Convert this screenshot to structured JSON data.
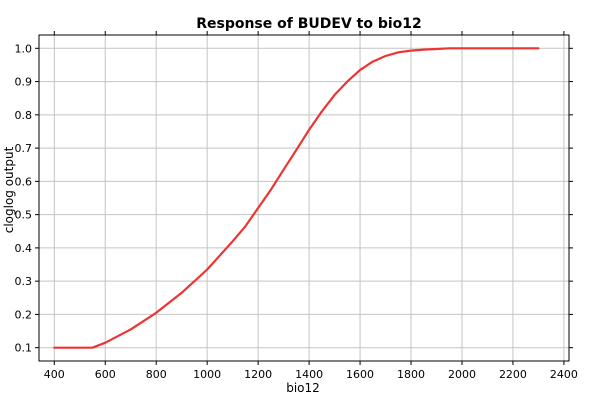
{
  "chart_data": {
    "type": "line",
    "title": "Response of BUDEV to bio12",
    "xlabel": "bio12",
    "ylabel": "cloglog output",
    "xlim": [
      340,
      2420
    ],
    "ylim": [
      0.06,
      1.04
    ],
    "x_ticks": [
      400,
      600,
      800,
      1000,
      1200,
      1400,
      1600,
      1800,
      2000,
      2200,
      2400
    ],
    "y_ticks": [
      0.1,
      0.2,
      0.3,
      0.4,
      0.5,
      0.6,
      0.7,
      0.8,
      0.9,
      1.0
    ],
    "x_tick_labels": [
      "400",
      "600",
      "800",
      "1000",
      "1200",
      "1400",
      "1600",
      "1800",
      "2000",
      "2200",
      "2400"
    ],
    "y_tick_labels": [
      "0.1",
      "0.2",
      "0.3",
      "0.4",
      "0.5",
      "0.6",
      "0.7",
      "0.8",
      "0.9",
      "1.0"
    ],
    "grid": true,
    "series": [
      {
        "color": "#ee3333",
        "x": [
          400,
          550,
          600,
          700,
          800,
          900,
          1000,
          1100,
          1150,
          1200,
          1250,
          1300,
          1350,
          1400,
          1450,
          1500,
          1550,
          1600,
          1650,
          1700,
          1750,
          1800,
          1850,
          1900,
          1950,
          2000,
          2100,
          2200,
          2300
        ],
        "y": [
          0.1,
          0.1,
          0.115,
          0.155,
          0.205,
          0.265,
          0.335,
          0.42,
          0.465,
          0.52,
          0.575,
          0.635,
          0.695,
          0.755,
          0.81,
          0.86,
          0.9,
          0.935,
          0.96,
          0.977,
          0.988,
          0.993,
          0.996,
          0.998,
          1.0,
          1.0,
          1.0,
          1.0,
          1.0
        ]
      }
    ]
  }
}
